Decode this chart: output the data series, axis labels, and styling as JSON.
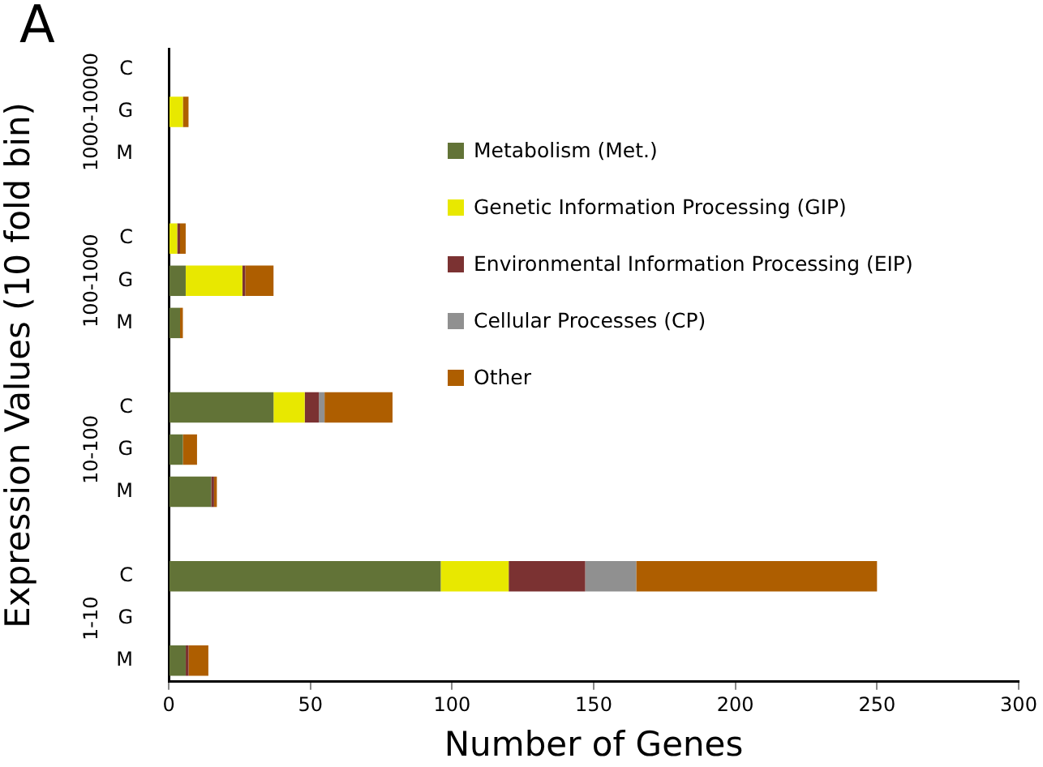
{
  "chart_data": {
    "type": "bar",
    "orientation": "horizontal",
    "stacked": true,
    "title": "A",
    "xlabel": "Number of Genes",
    "ylabel": "Expression Values (10 fold bin)",
    "categories": [
      "C",
      "G",
      "M",
      null,
      "C",
      "G",
      "M",
      null,
      "C",
      "G",
      "M",
      null,
      "C",
      "G",
      "M"
    ],
    "annotations": [
      "1000-10000",
      "100-1000",
      "10-100",
      "1-10"
    ],
    "series": [
      {
        "name": "Metabolism (Met.)",
        "color": "#627337",
        "values": [
          0,
          0,
          0,
          null,
          0,
          6,
          4,
          null,
          37,
          5,
          15,
          null,
          96,
          0,
          6
        ]
      },
      {
        "name": "Genetic Information Processing (GIP)",
        "color": "#e8e800",
        "values": [
          0,
          5,
          0,
          null,
          3,
          20,
          0,
          null,
          11,
          0,
          0,
          null,
          24,
          0,
          0
        ]
      },
      {
        "name": "Environmental Information Processing (EIP)",
        "color": "#7b3232",
        "values": [
          0,
          0,
          0,
          null,
          1,
          1,
          0,
          null,
          5,
          0,
          1,
          null,
          27,
          0,
          1
        ]
      },
      {
        "name": "Cellular Processes (CP)",
        "color": "#909090",
        "values": [
          0,
          0,
          0,
          null,
          0,
          0,
          0,
          null,
          2,
          0,
          0,
          null,
          18,
          0,
          0
        ]
      },
      {
        "name": "Other",
        "color": "#ae5e00",
        "values": [
          0,
          2,
          0,
          null,
          2,
          10,
          1,
          null,
          24,
          5,
          1,
          null,
          85,
          0,
          7
        ]
      }
    ],
    "xlim": [
      0,
      300
    ],
    "xticks": [
      0,
      50,
      100,
      150,
      200,
      250,
      300
    ],
    "grid": false,
    "legend": "right"
  }
}
